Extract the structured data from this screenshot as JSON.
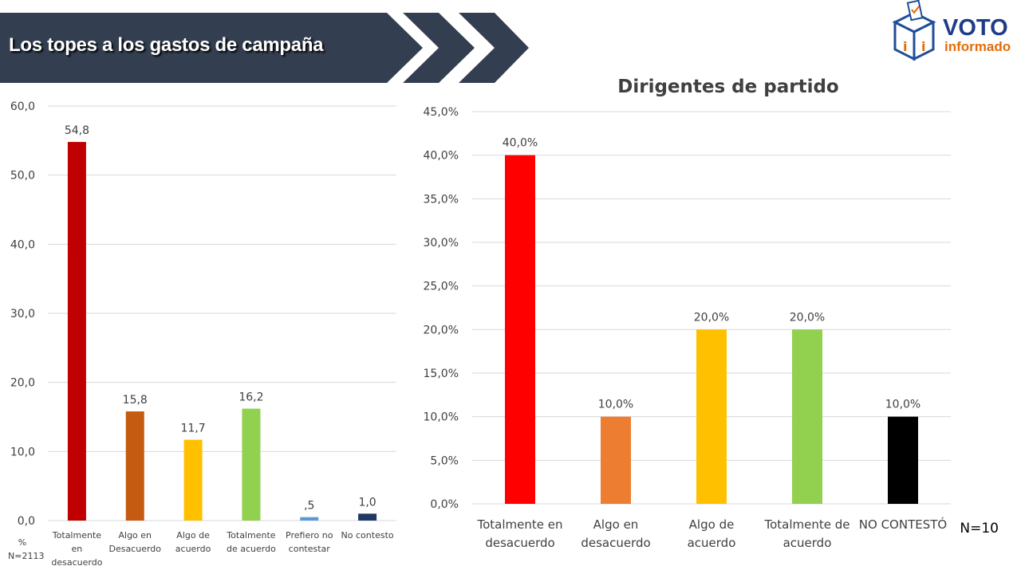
{
  "page_title": "Los topes a los gastos de campaña",
  "logo": {
    "word1": "VOTO",
    "word2": "informado",
    "icon": "ballot-box-icon"
  },
  "colors": {
    "banner": "#333f50",
    "grid": "#d9d9d9",
    "axis_text": "#404040"
  },
  "chart_data": [
    {
      "type": "bar",
      "title": "",
      "categories": [
        [
          "Totalmente",
          "en",
          "desacuerdo"
        ],
        [
          "Algo en",
          "Desacuerdo"
        ],
        [
          "Algo de",
          "acuerdo"
        ],
        [
          "Totalmente",
          "de acuerdo"
        ],
        [
          "Prefiero no",
          "contestar"
        ],
        [
          "No contesto"
        ]
      ],
      "values": [
        54.8,
        15.8,
        11.7,
        16.2,
        0.5,
        1.0
      ],
      "value_labels": [
        "54,8",
        "15,8",
        "11,7",
        "16,2",
        ",5",
        "1,0"
      ],
      "colors": [
        "#c00000",
        "#c55a11",
        "#ffc000",
        "#92d050",
        "#5b9bd5",
        "#1f3864"
      ],
      "ylim": [
        0,
        60
      ],
      "yticks": [
        0,
        10,
        20,
        30,
        40,
        50,
        60
      ],
      "ytick_labels": [
        "0,0",
        "10,0",
        "20,0",
        "30,0",
        "40,0",
        "50,0",
        "60,0"
      ],
      "ylabel": "%",
      "note": "N=2113",
      "grid": true,
      "legend": "none"
    },
    {
      "type": "bar",
      "title": "Dirigentes de partido",
      "categories": [
        [
          "Totalmente en",
          "desacuerdo"
        ],
        [
          "Algo en",
          "desacuerdo"
        ],
        [
          "Algo de",
          "acuerdo"
        ],
        [
          "Totalmente de",
          "acuerdo"
        ],
        [
          "NO CONTESTÓ"
        ]
      ],
      "values": [
        40.0,
        10.0,
        20.0,
        20.0,
        10.0
      ],
      "value_labels": [
        "40,0%",
        "10,0%",
        "20,0%",
        "20,0%",
        "10,0%"
      ],
      "colors": [
        "#ff0000",
        "#ed7d31",
        "#ffc000",
        "#92d050",
        "#000000"
      ],
      "ylim": [
        0,
        45
      ],
      "yticks": [
        0,
        5,
        10,
        15,
        20,
        25,
        30,
        35,
        40,
        45
      ],
      "ytick_labels": [
        "0,0%",
        "5,0%",
        "10,0%",
        "15,0%",
        "20,0%",
        "25,0%",
        "30,0%",
        "35,0%",
        "40,0%",
        "45,0%"
      ],
      "note": "N=10",
      "grid": true,
      "legend": "none"
    }
  ]
}
